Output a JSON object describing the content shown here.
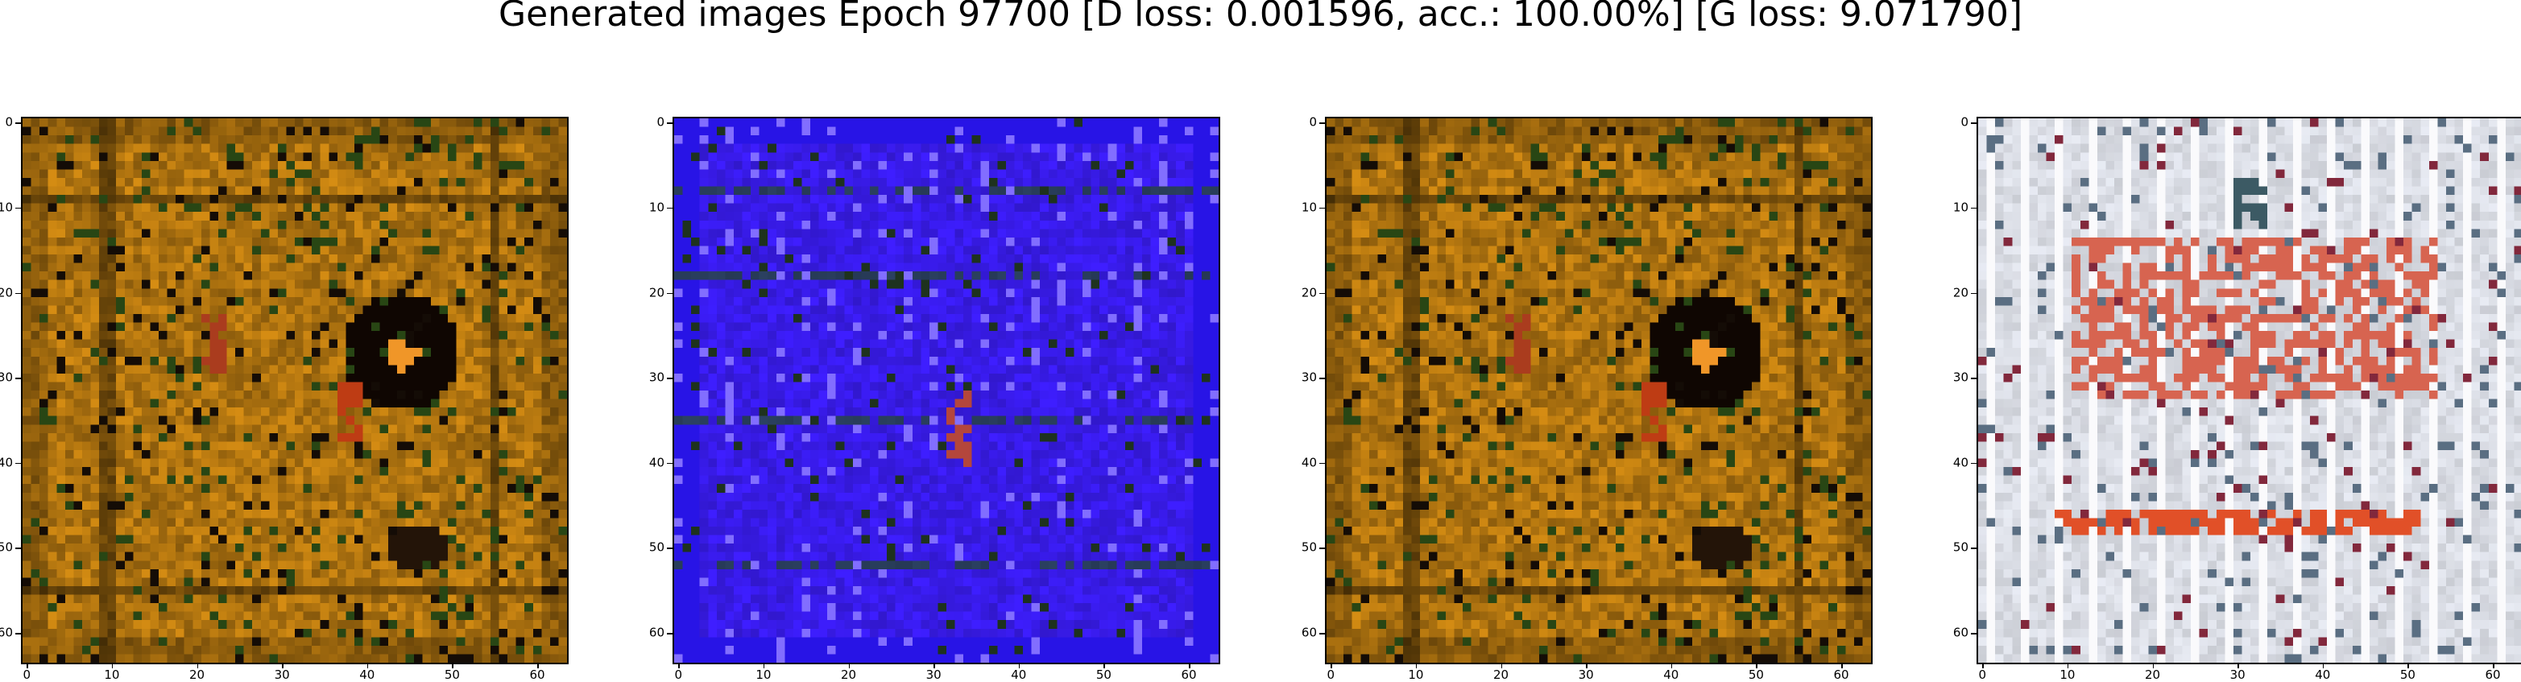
{
  "figure": {
    "title": "Generated images Epoch 97700 [D loss: 0.001596, acc.: 100.00%] [G loss: 9.071790]"
  },
  "axis": {
    "x_ticks": [
      "0",
      "10",
      "20",
      "30",
      "40",
      "50",
      "60"
    ],
    "y_ticks": [
      "0",
      "10",
      "20",
      "30",
      "40",
      "50",
      "60"
    ]
  },
  "panels": [
    {
      "id": "image-1",
      "style": "gold",
      "base_color": "#b07a1a"
    },
    {
      "id": "image-2",
      "style": "blue",
      "base_color": "#3a1cf0"
    },
    {
      "id": "image-3",
      "style": "gold",
      "base_color": "#b07a1a"
    },
    {
      "id": "image-4",
      "style": "pale",
      "base_color": "#dfe2ea"
    }
  ],
  "colors": {
    "gold": "#b07a1a",
    "blue": "#3a1cf0",
    "pale": "#dfe2ea",
    "accent_red": "#d84a2a",
    "dark": "#1a0d04"
  }
}
